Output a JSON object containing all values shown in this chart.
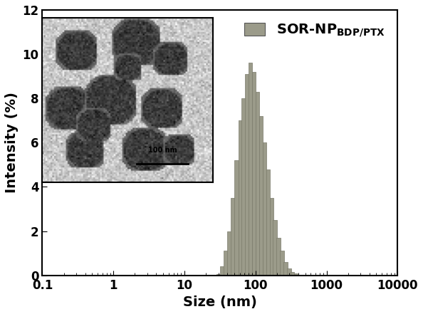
{
  "bar_color": "#9B9B8A",
  "bar_edge_color": "#7A7A6A",
  "ylabel": "Intensity (%)",
  "xlabel": "Size (nm)",
  "ylim": [
    0,
    12
  ],
  "yticks": [
    0,
    2,
    4,
    6,
    8,
    10,
    12
  ],
  "xlim_log": [
    0.1,
    10000
  ],
  "legend_label_main": "SOR-NP",
  "legend_label_sub": "BDP/PTX",
  "background_color": "#ffffff",
  "bar_centers_nm": [
    30,
    34,
    38,
    43,
    48,
    54,
    61,
    68,
    76,
    85,
    95,
    107,
    119,
    134,
    150,
    168,
    188,
    211,
    236,
    264,
    296,
    331,
    370,
    415
  ],
  "bar_heights": [
    0.05,
    0.4,
    1.1,
    2.0,
    3.5,
    5.2,
    7.0,
    8.0,
    9.1,
    9.6,
    9.2,
    8.3,
    7.2,
    6.0,
    4.8,
    3.5,
    2.5,
    1.7,
    1.1,
    0.6,
    0.3,
    0.15,
    0.07,
    0.03
  ],
  "inset_image_placeholder": true,
  "scalebar_text": "100 nm",
  "title_fontsize": 14,
  "axis_fontsize": 14,
  "tick_fontsize": 12,
  "legend_fontsize": 14
}
